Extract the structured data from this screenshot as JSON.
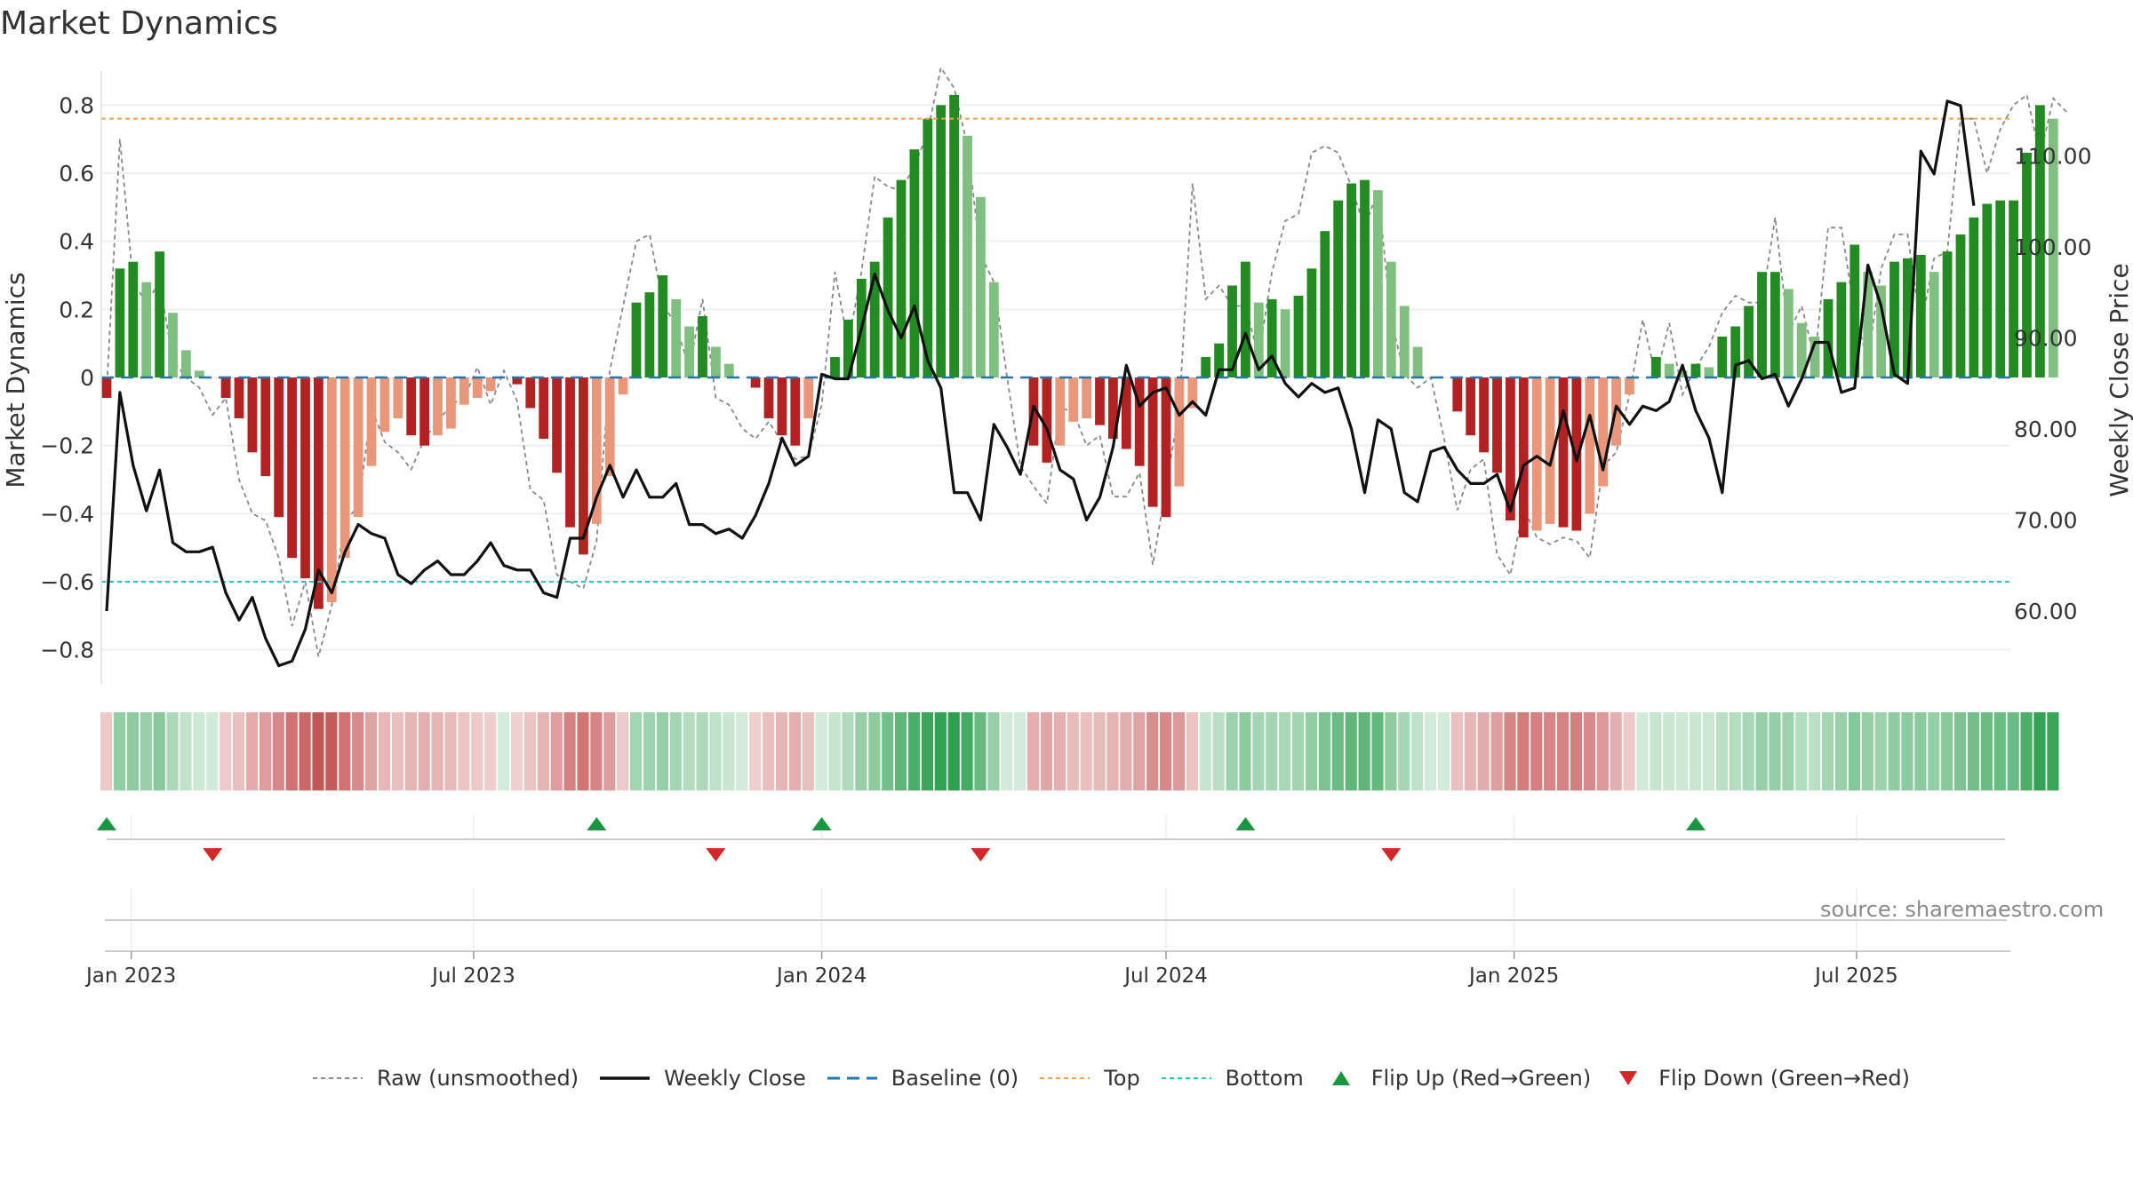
{
  "title": "Market Dynamics",
  "source": "source: sharemaestro.com",
  "colors": {
    "green_dark": "#228b22",
    "green_light": "#7fbf7f",
    "red_dark": "#b22222",
    "red_light": "#e9967a",
    "top": "#f0a04b",
    "bottom": "#1fc7c7",
    "baseline": "#1f77b4",
    "close": "#111111",
    "raw": "#888888"
  },
  "legend": {
    "raw": "Raw (unsmoothed)",
    "close": "Weekly Close",
    "baseline": "Baseline (0)",
    "top": "Top",
    "bottom": "Bottom",
    "flip_up": "Flip Up (Red→Green)",
    "flip_down": "Flip Down (Green→Red)"
  },
  "chart_data": {
    "type": "bar",
    "x_start": "2022-12-19",
    "week_step_days": 7,
    "ylabel": "Market Dynamics",
    "y2label": "Weekly Close Price",
    "ylim": [
      -0.9,
      0.9
    ],
    "y2lim": [
      52.0,
      119.3
    ],
    "yticks": [
      "0.8",
      "0.6",
      "0.4",
      "0.2",
      "0",
      "−0.2",
      "−0.4",
      "−0.6",
      "−0.8"
    ],
    "yticks_values": [
      0.8,
      0.6,
      0.4,
      0.2,
      0,
      -0.2,
      -0.4,
      -0.6,
      -0.8
    ],
    "y2ticks": [
      "110.00",
      "100.00",
      "90.00",
      "80.00",
      "70.00",
      "60.00"
    ],
    "y2ticks_values": [
      110,
      100,
      90,
      80,
      70,
      60
    ],
    "xticks": [
      "Jan 2023",
      "Jul 2023",
      "Jan 2024",
      "Jul 2024",
      "Jan 2025",
      "Jul 2025"
    ],
    "xticks_dates": [
      "2023-01-01",
      "2023-07-01",
      "2024-01-01",
      "2024-07-01",
      "2025-01-01",
      "2025-07-01"
    ],
    "top_line": 0.76,
    "bottom_line": -0.6,
    "baseline": 0,
    "bars": [
      -0.06,
      0.32,
      0.34,
      0.28,
      0.37,
      0.19,
      0.08,
      0.02,
      0.0,
      -0.06,
      -0.12,
      -0.22,
      -0.29,
      -0.41,
      -0.53,
      -0.59,
      -0.68,
      -0.66,
      -0.53,
      -0.41,
      -0.26,
      -0.16,
      -0.12,
      -0.17,
      -0.2,
      -0.17,
      -0.15,
      -0.08,
      -0.06,
      -0.04,
      0.0,
      -0.02,
      -0.09,
      -0.18,
      -0.28,
      -0.44,
      -0.52,
      -0.43,
      -0.29,
      -0.05,
      0.22,
      0.25,
      0.3,
      0.23,
      0.15,
      0.18,
      0.09,
      0.04,
      0.0,
      -0.03,
      -0.12,
      -0.17,
      -0.2,
      -0.12,
      0.0,
      0.06,
      0.17,
      0.29,
      0.34,
      0.47,
      0.58,
      0.67,
      0.76,
      0.8,
      0.83,
      0.71,
      0.53,
      0.28,
      0.0,
      0.0,
      -0.2,
      -0.25,
      -0.2,
      -0.13,
      -0.12,
      -0.14,
      -0.18,
      -0.21,
      -0.26,
      -0.38,
      -0.41,
      -0.32,
      -0.09,
      0.06,
      0.1,
      0.27,
      0.34,
      0.22,
      0.23,
      0.2,
      0.24,
      0.32,
      0.43,
      0.52,
      0.57,
      0.58,
      0.55,
      0.34,
      0.21,
      0.09,
      0.0,
      0.0,
      -0.1,
      -0.17,
      -0.22,
      -0.28,
      -0.42,
      -0.47,
      -0.45,
      -0.43,
      -0.44,
      -0.45,
      -0.4,
      -0.32,
      -0.2,
      -0.05,
      0.0,
      0.06,
      0.04,
      0.02,
      0.04,
      0.03,
      0.12,
      0.15,
      0.21,
      0.31,
      0.31,
      0.26,
      0.16,
      0.12,
      0.23,
      0.28,
      0.39,
      0.31,
      0.27,
      0.34,
      0.35,
      0.36,
      0.31,
      0.37,
      0.42,
      0.47,
      0.51,
      0.52,
      0.52,
      0.66,
      0.8,
      0.76
    ],
    "raw": [
      -0.04,
      0.7,
      0.28,
      0.22,
      0.28,
      0.05,
      0.0,
      -0.03,
      -0.11,
      -0.06,
      -0.3,
      -0.4,
      -0.42,
      -0.53,
      -0.73,
      -0.6,
      -0.82,
      -0.67,
      -0.42,
      -0.38,
      -0.09,
      -0.19,
      -0.22,
      -0.27,
      -0.18,
      -0.13,
      -0.08,
      -0.06,
      0.03,
      -0.08,
      0.02,
      -0.07,
      -0.33,
      -0.36,
      -0.58,
      -0.6,
      -0.62,
      -0.48,
      0.02,
      0.21,
      0.4,
      0.42,
      0.22,
      0.15,
      0.03,
      0.23,
      -0.06,
      -0.08,
      -0.15,
      -0.18,
      -0.13,
      -0.19,
      -0.24,
      -0.23,
      -0.08,
      0.31,
      0.1,
      0.31,
      0.59,
      0.56,
      0.55,
      0.62,
      0.72,
      0.91,
      0.85,
      0.68,
      0.36,
      0.28,
      0.0,
      -0.26,
      -0.32,
      -0.37,
      -0.09,
      -0.1,
      -0.2,
      -0.17,
      -0.35,
      -0.35,
      -0.28,
      -0.55,
      -0.32,
      -0.09,
      0.57,
      0.23,
      0.27,
      0.21,
      0.21,
      0.06,
      0.31,
      0.46,
      0.48,
      0.66,
      0.68,
      0.66,
      0.56,
      0.44,
      0.55,
      0.17,
      0.01,
      -0.03,
      0.0,
      -0.18,
      -0.39,
      -0.27,
      -0.24,
      -0.52,
      -0.58,
      -0.38,
      -0.47,
      -0.49,
      -0.47,
      -0.48,
      -0.53,
      -0.26,
      -0.22,
      -0.05,
      0.17,
      0.0,
      0.16,
      -0.05,
      0.03,
      0.09,
      0.19,
      0.24,
      0.22,
      0.22,
      0.47,
      0.13,
      0.21,
      0.05,
      0.44,
      0.44,
      0.19,
      0.05,
      0.32,
      0.42,
      0.42,
      0.15,
      0.35,
      0.37,
      0.76,
      0.76,
      0.6,
      0.73,
      0.8,
      0.83,
      0.65,
      0.82,
      0.78
    ],
    "close": [
      60.0,
      84.0,
      76.0,
      71.0,
      75.5,
      67.5,
      66.5,
      66.5,
      67.0,
      62.0,
      59.0,
      61.5,
      57.0,
      54.0,
      54.5,
      58.0,
      64.5,
      62.0,
      66.5,
      69.5,
      68.5,
      68.0,
      64.0,
      63.0,
      64.5,
      65.5,
      64.0,
      64.0,
      65.5,
      67.5,
      65.0,
      64.5,
      64.5,
      62.0,
      61.5,
      68.0,
      68.0,
      72.5,
      76.0,
      72.5,
      75.5,
      72.5,
      72.5,
      74.0,
      69.5,
      69.5,
      68.5,
      69.0,
      68.0,
      70.5,
      74.0,
      79.0,
      76.0,
      77.0,
      86.0,
      85.5,
      85.5,
      91.0,
      97.0,
      93.0,
      90.0,
      93.5,
      87.5,
      84.5,
      73.0,
      73.0,
      70.0,
      80.5,
      78.0,
      75.0,
      82.5,
      80.0,
      75.5,
      74.5,
      70.0,
      72.5,
      78.0,
      87.0,
      82.5,
      84.0,
      84.5,
      81.5,
      83.0,
      81.5,
      86.5,
      86.5,
      90.5,
      86.5,
      88.0,
      85.0,
      83.5,
      85.0,
      84.0,
      84.5,
      80.0,
      73.0,
      81.0,
      80.0,
      73.0,
      72.0,
      77.5,
      78.0,
      75.5,
      74.0,
      74.0,
      75.0,
      71.0,
      76.0,
      77.0,
      76.0,
      82.0,
      76.5,
      81.5,
      75.5,
      82.5,
      80.5,
      82.5,
      82.0,
      83.0,
      87.0,
      82.0,
      79.0,
      73.0,
      87.0,
      87.5,
      85.5,
      86.0,
      82.5,
      85.5,
      89.5,
      89.5,
      84.0,
      84.5,
      98.0,
      93.5,
      86.0,
      85.0,
      110.5,
      108.0,
      116.0,
      115.5,
      104.5
    ],
    "flips_up": [
      0,
      37,
      54,
      86,
      120
    ],
    "flips_down": [
      8,
      46,
      66,
      97
    ]
  }
}
